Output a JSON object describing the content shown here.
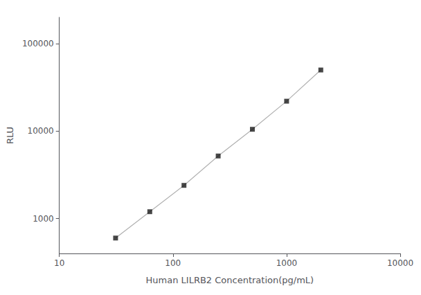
{
  "chart_data": {
    "type": "line",
    "xlabel": "Human LILRB2 Concentration(pg/mL)",
    "ylabel": "RLU",
    "x": [
      31.25,
      62.5,
      125,
      250,
      500,
      1000,
      2000
    ],
    "series": [
      {
        "type": "line",
        "color": "#b0b0b0",
        "line_style": "solid",
        "values": [
          600,
          1200,
          2400,
          5200,
          10500,
          22000,
          50000
        ]
      },
      {
        "type": "scatter",
        "color": "#1a1a1a",
        "marker": "square",
        "values": [
          600,
          1200,
          2400,
          5200,
          10500,
          22000,
          50000
        ]
      }
    ],
    "log": true,
    "xlim": [
      10,
      10000
    ],
    "ylim": [
      400,
      200000
    ],
    "xticks": [
      10,
      100,
      1000,
      10000
    ],
    "yticks": [
      1000,
      10000,
      100000
    ],
    "grid": false
  }
}
